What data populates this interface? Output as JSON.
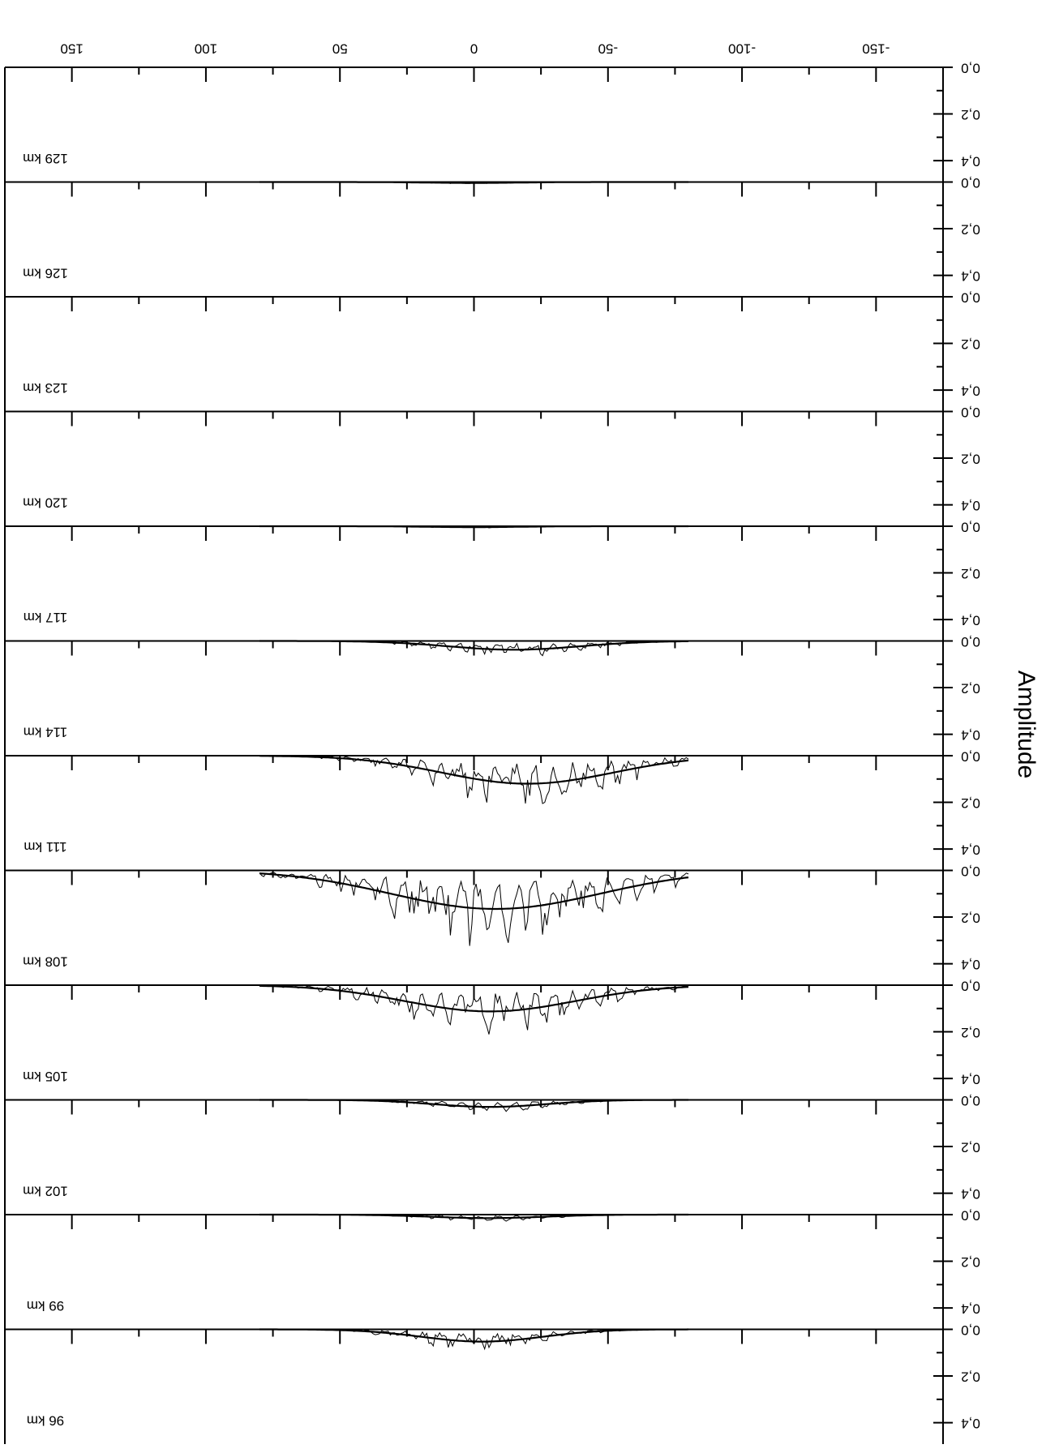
{
  "chart_data": {
    "type": "line",
    "orientation": "rotated-180",
    "title": "",
    "ylabel": "Amplitude",
    "xlim": [
      -175,
      175
    ],
    "x_ticks": [
      150,
      100,
      50,
      0,
      -50,
      -100,
      -150
    ],
    "x_tick_labels": [
      "150",
      "100",
      "50",
      "0",
      "-50",
      "-100",
      "-150"
    ],
    "amp_ticks": [
      0.0,
      0.2,
      0.4
    ],
    "amp_tick_labels": [
      "0,0",
      "0,2",
      "0,4"
    ],
    "ylim": [
      0,
      0.45
    ],
    "panels": [
      {
        "name": "96 km",
        "label": "96 km",
        "peak": 0.07,
        "width": 32,
        "center": -3
      },
      {
        "name": "99 km",
        "label": "99 km",
        "peak": 0.02,
        "width": 30,
        "center": -5
      },
      {
        "name": "102 km",
        "label": "102 km",
        "peak": 0.04,
        "width": 30,
        "center": -6
      },
      {
        "name": "105 km",
        "label": "105 km",
        "peak": 0.15,
        "width": 45,
        "center": -6
      },
      {
        "name": "108 km",
        "label": "108 km",
        "peak": 0.22,
        "width": 55,
        "center": -8
      },
      {
        "name": "111 km",
        "label": "111 km",
        "peak": 0.16,
        "width": 45,
        "center": -20
      },
      {
        "name": "114 km",
        "label": "114 km",
        "peak": 0.05,
        "width": 35,
        "center": -15
      },
      {
        "name": "117 km",
        "label": "117 km",
        "peak": 0.005,
        "width": 25,
        "center": 0
      },
      {
        "name": "120 km",
        "label": "120 km",
        "peak": 0.0,
        "width": 25,
        "center": 0
      },
      {
        "name": "123 km",
        "label": "123 km",
        "peak": 0.0,
        "width": 25,
        "center": 0
      },
      {
        "name": "126 km",
        "label": "126 km",
        "peak": 0.005,
        "width": 25,
        "center": 0
      },
      {
        "name": "129 km",
        "label": "129 km",
        "peak": 0.0,
        "width": 25,
        "center": 0
      }
    ],
    "grid": false,
    "legend": "none"
  }
}
